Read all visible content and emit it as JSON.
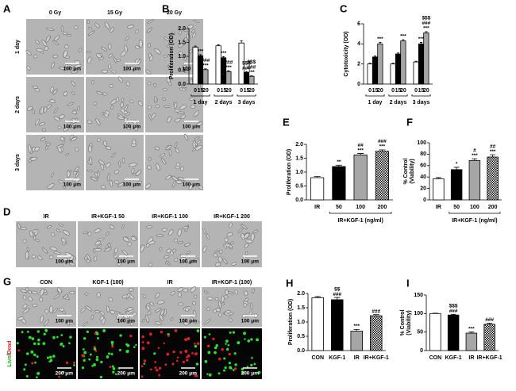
{
  "image_panels": {
    "A": {
      "panel": "A",
      "columns": [
        "0 Gy",
        "15 Gy",
        "20 Gy"
      ],
      "rows": [
        "1 day",
        "2 days",
        "3 days"
      ],
      "scale_bar": "100 μm"
    },
    "D": {
      "panel": "D",
      "columns": [
        "IR",
        "IR+KGF-1  50",
        "IR+KGF-1  100",
        "IR+KGF-1  200"
      ],
      "scale_bar": "100 μm"
    },
    "G": {
      "panel": "G",
      "columns": [
        "CON",
        "KGF-1  (100)",
        "IR",
        "IR+KGF-1  (100)"
      ],
      "row_label": [
        "Live",
        "/",
        "Dead"
      ],
      "scale_bar_top": "100 μm",
      "scale_bar_bottom": "200 μm"
    }
  },
  "chart_data": [
    {
      "type": "grouped_bar",
      "panel": "B",
      "ylabel": [
        "Proliferation (OD)"
      ],
      "categories": [
        "1 day",
        "2 days",
        "3 days"
      ],
      "series": [
        {
          "name": "0",
          "color": "#ffffff",
          "values": [
            1.33,
            1.38,
            1.48
          ],
          "errors": [
            0.04,
            0.04,
            0.08
          ],
          "annotations": [
            null,
            null,
            null
          ]
        },
        {
          "name": "15",
          "color": "#000000",
          "values": [
            1.02,
            0.95,
            0.42
          ],
          "errors": [
            0.04,
            0.04,
            0.03
          ],
          "annotations": [
            [
              "***"
            ],
            [
              "***"
            ],
            [
              "$$$",
              "###"
            ]
          ]
        },
        {
          "name": "20",
          "color": "#a6a6a6",
          "values": [
            0.52,
            0.45,
            0.28
          ],
          "errors": [
            0.03,
            0.03,
            0.02
          ],
          "annotations": [
            [
              "###",
              "***"
            ],
            [
              "###",
              "***"
            ],
            [
              "$$$",
              "###",
              "***"
            ]
          ]
        }
      ],
      "ylim": [
        0,
        2.0
      ],
      "yticks": [
        {
          "value": 0,
          "label": "0.0"
        },
        {
          "value": 0.5,
          "label": "0.5"
        },
        {
          "value": 1.0,
          "label": "1.0"
        },
        {
          "value": 1.5,
          "label": "1.5"
        },
        {
          "value": 2.0,
          "label": "2.0"
        }
      ]
    },
    {
      "type": "grouped_bar",
      "panel": "C",
      "ylabel": [
        "Cytotoxicity (OD)"
      ],
      "categories": [
        "1 day",
        "2 days",
        "3 days"
      ],
      "series": [
        {
          "name": "0",
          "color": "#ffffff",
          "values": [
            2.0,
            2.0,
            2.2
          ],
          "errors": [
            0.08,
            0.08,
            0.08
          ],
          "annotations": [
            null,
            null,
            null
          ]
        },
        {
          "name": "15",
          "color": "#000000",
          "values": [
            2.7,
            3.0,
            4.0
          ],
          "errors": [
            0.1,
            0.1,
            0.15
          ],
          "annotations": [
            null,
            null,
            [
              "***"
            ]
          ]
        },
        {
          "name": "20",
          "color": "#a6a6a6",
          "values": [
            4.0,
            4.3,
            5.1
          ],
          "errors": [
            0.15,
            0.12,
            0.12
          ],
          "annotations": [
            [
              "***"
            ],
            [
              "***"
            ],
            [
              "$$$",
              "###",
              "***"
            ]
          ]
        }
      ],
      "ylim": [
        0,
        6
      ],
      "yticks": [
        0,
        2,
        4,
        6
      ]
    },
    {
      "type": "bar",
      "panel": "E",
      "ylabel": [
        "Proliferation (OD)"
      ],
      "group_label": "IR+KGF-1  (ng/ml)",
      "categories": [
        "IR",
        "50",
        "100",
        "200"
      ],
      "values": [
        0.8,
        1.2,
        1.62,
        1.75
      ],
      "errors": [
        0.04,
        0.05,
        0.05,
        0.05
      ],
      "colors": [
        "#ffffff",
        "#000000",
        "#a6a6a6",
        "#ffffff"
      ],
      "patterns": [
        null,
        null,
        null,
        "checker"
      ],
      "annotations": [
        null,
        [
          "**"
        ],
        [
          "##",
          "***"
        ],
        [
          "###",
          "***"
        ]
      ],
      "ylim": [
        0,
        2.0
      ],
      "yticks": [
        {
          "value": 0,
          "label": "0.0"
        },
        {
          "value": 0.5,
          "label": "0.5"
        },
        {
          "value": 1.0,
          "label": "1.0"
        },
        {
          "value": 1.5,
          "label": "1.5"
        },
        {
          "value": 2.0,
          "label": "2.0"
        }
      ]
    },
    {
      "type": "bar",
      "panel": "F",
      "ylabel": [
        "% Control",
        "(Viability)"
      ],
      "group_label": "IR+KGF-1  (ng/ml)",
      "categories": [
        "IR",
        "50",
        "100",
        "200"
      ],
      "values": [
        37,
        53,
        69,
        75
      ],
      "errors": [
        2,
        4,
        3,
        4
      ],
      "colors": [
        "#ffffff",
        "#000000",
        "#a6a6a6",
        "#ffffff"
      ],
      "patterns": [
        null,
        null,
        null,
        "checker"
      ],
      "annotations": [
        null,
        [
          "*"
        ],
        [
          "#",
          "***"
        ],
        [
          "##",
          "***"
        ]
      ],
      "ylim": [
        0,
        100
      ],
      "yticks": [
        0,
        20,
        40,
        60,
        80,
        100
      ]
    },
    {
      "type": "bar",
      "panel": "H",
      "ylabel": [
        "Proliferation (OD)"
      ],
      "categories": [
        "CON",
        "KGF-1",
        "IR",
        "IR+KGF-1"
      ],
      "values": [
        1.85,
        1.78,
        0.68,
        1.22
      ],
      "errors": [
        0.04,
        0.08,
        0.06,
        0.04
      ],
      "colors": [
        "#ffffff",
        "#000000",
        "#a6a6a6",
        "#ffffff"
      ],
      "patterns": [
        null,
        null,
        null,
        "checker"
      ],
      "annotations": [
        null,
        [
          "$$",
          "###"
        ],
        [
          "***"
        ],
        [
          "###"
        ]
      ],
      "ylim": [
        0,
        2.0
      ],
      "yticks": [
        {
          "value": 0,
          "label": "0.0"
        },
        {
          "value": 0.5,
          "label": "0.5"
        },
        {
          "value": 1.0,
          "label": "1.0"
        },
        {
          "value": 1.5,
          "label": "1.5"
        },
        {
          "value": 2.0,
          "label": "2.0"
        }
      ]
    },
    {
      "type": "bar",
      "panel": "I",
      "ylabel": [
        "% Control",
        "(Viability)"
      ],
      "categories": [
        "CON",
        "KGF-1",
        "IR",
        "IR+KGF-1"
      ],
      "values": [
        100,
        96,
        47,
        71
      ],
      "errors": [
        1,
        2,
        3,
        3
      ],
      "colors": [
        "#ffffff",
        "#000000",
        "#a6a6a6",
        "#ffffff"
      ],
      "patterns": [
        null,
        null,
        null,
        "checker"
      ],
      "annotations": [
        null,
        [
          "$$$",
          "###"
        ],
        [
          "***"
        ],
        [
          "###"
        ]
      ],
      "ylim": [
        0,
        150
      ],
      "yticks": [
        0,
        50,
        100,
        150
      ]
    }
  ]
}
